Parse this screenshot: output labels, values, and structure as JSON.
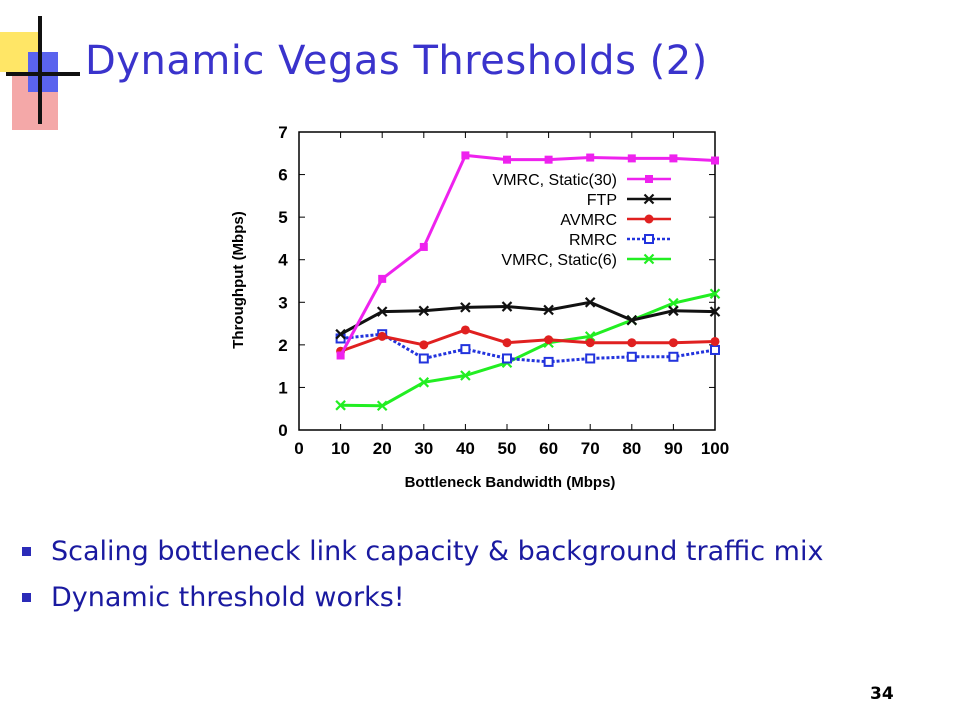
{
  "slide": {
    "title": "Dynamic Vegas Thresholds (2)",
    "bullets": [
      "Scaling bottleneck link capacity & background traffic mix",
      "Dynamic threshold works!"
    ],
    "page_number": "34",
    "colors": {
      "title": "#3a33cc",
      "bullet": "#2b2bb8",
      "bullet_text": "#1a1aa0"
    }
  },
  "chart_data": {
    "type": "line",
    "xlabel": "Bottleneck Bandwidth (Mbps)",
    "ylabel": "Throughput (Mbps)",
    "xlim": [
      0,
      100
    ],
    "ylim": [
      0,
      7
    ],
    "xticks": [
      0,
      10,
      20,
      30,
      40,
      50,
      60,
      70,
      80,
      90,
      100
    ],
    "yticks": [
      0,
      1,
      2,
      3,
      4,
      5,
      6,
      7
    ],
    "x": [
      10,
      20,
      30,
      40,
      50,
      60,
      70,
      80,
      90,
      100
    ],
    "grid": false,
    "legend_position": "top-right",
    "series": [
      {
        "name": "VMRC, Static(30)",
        "color": "#ee22ee",
        "marker": "square",
        "values": [
          1.75,
          3.55,
          4.3,
          6.45,
          6.35,
          6.35,
          6.4,
          6.38,
          6.38,
          6.33
        ]
      },
      {
        "name": "FTP",
        "color": "#111111",
        "marker": "x",
        "values": [
          2.25,
          2.78,
          2.8,
          2.88,
          2.9,
          2.82,
          3.0,
          2.58,
          2.8,
          2.78
        ]
      },
      {
        "name": "AVMRC",
        "color": "#e02020",
        "marker": "circle",
        "values": [
          1.85,
          2.2,
          2.0,
          2.35,
          2.05,
          2.12,
          2.05,
          2.05,
          2.05,
          2.08
        ]
      },
      {
        "name": "RMRC",
        "color": "#2233dd",
        "marker": "circle-open",
        "values": [
          2.15,
          2.25,
          1.68,
          1.9,
          1.68,
          1.6,
          1.68,
          1.72,
          1.72,
          1.88
        ]
      },
      {
        "name": "VMRC, Static(6)",
        "color": "#22ee22",
        "marker": "x",
        "values": [
          0.58,
          0.57,
          1.12,
          1.28,
          1.58,
          2.05,
          2.2,
          2.58,
          2.98,
          3.2
        ]
      }
    ]
  }
}
